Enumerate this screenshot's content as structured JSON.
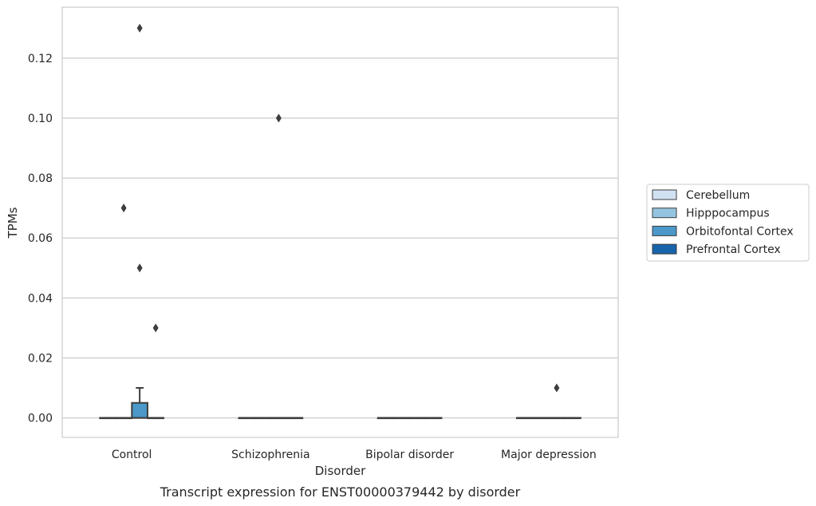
{
  "chart_data": {
    "type": "box",
    "caption": "Transcript expression for ENST00000379442 by disorder",
    "xlabel": "Disorder",
    "ylabel": "TPMs",
    "ylim": [
      -0.0065,
      0.137
    ],
    "yticks": [
      0.0,
      0.02,
      0.04,
      0.06,
      0.08,
      0.1,
      0.12
    ],
    "ytick_labels": [
      "0.00",
      "0.02",
      "0.04",
      "0.06",
      "0.08",
      "0.10",
      "0.12"
    ],
    "grid": "horizontal",
    "legend_position": "right",
    "categories": [
      "Control",
      "Schizophrenia",
      "Bipolar disorder",
      "Major depression"
    ],
    "series": [
      {
        "name": "Cerebellum",
        "color": "#d0e1f2",
        "boxes": [
          {
            "min": 0,
            "q1": 0,
            "median": 0,
            "q3": 0,
            "max": 0,
            "outliers": []
          },
          {
            "min": 0,
            "q1": 0,
            "median": 0,
            "q3": 0,
            "max": 0,
            "outliers": []
          },
          {
            "min": 0,
            "q1": 0,
            "median": 0,
            "q3": 0,
            "max": 0,
            "outliers": []
          },
          {
            "min": 0,
            "q1": 0,
            "median": 0,
            "q3": 0,
            "max": 0,
            "outliers": []
          }
        ]
      },
      {
        "name": "Hipppocampus",
        "color": "#94c4df",
        "boxes": [
          {
            "min": 0,
            "q1": 0,
            "median": 0,
            "q3": 0,
            "max": 0,
            "outliers": [
              0.07
            ]
          },
          {
            "min": 0,
            "q1": 0,
            "median": 0,
            "q3": 0,
            "max": 0,
            "outliers": []
          },
          {
            "min": 0,
            "q1": 0,
            "median": 0,
            "q3": 0,
            "max": 0,
            "outliers": []
          },
          {
            "min": 0,
            "q1": 0,
            "median": 0,
            "q3": 0,
            "max": 0,
            "outliers": []
          }
        ]
      },
      {
        "name": "Orbitofontal Cortex",
        "color": "#4b98c9",
        "boxes": [
          {
            "min": 0,
            "q1": 0,
            "median": 0,
            "q3": 0.005,
            "max": 0.01,
            "outliers": [
              0.13,
              0.05
            ]
          },
          {
            "min": 0,
            "q1": 0,
            "median": 0,
            "q3": 0,
            "max": 0,
            "outliers": [
              0.1
            ]
          },
          {
            "min": 0,
            "q1": 0,
            "median": 0,
            "q3": 0,
            "max": 0,
            "outliers": []
          },
          {
            "min": 0,
            "q1": 0,
            "median": 0,
            "q3": 0,
            "max": 0,
            "outliers": [
              0.01
            ]
          }
        ]
      },
      {
        "name": "Prefrontal Cortex",
        "color": "#1764ab",
        "boxes": [
          {
            "min": 0,
            "q1": 0,
            "median": 0,
            "q3": 0,
            "max": 0,
            "outliers": [
              0.03
            ]
          },
          {
            "min": 0,
            "q1": 0,
            "median": 0,
            "q3": 0,
            "max": 0,
            "outliers": []
          },
          {
            "min": 0,
            "q1": 0,
            "median": 0,
            "q3": 0,
            "max": 0,
            "outliers": []
          },
          {
            "min": 0,
            "q1": 0,
            "median": 0,
            "q3": 0,
            "max": 0,
            "outliers": []
          }
        ]
      }
    ]
  }
}
